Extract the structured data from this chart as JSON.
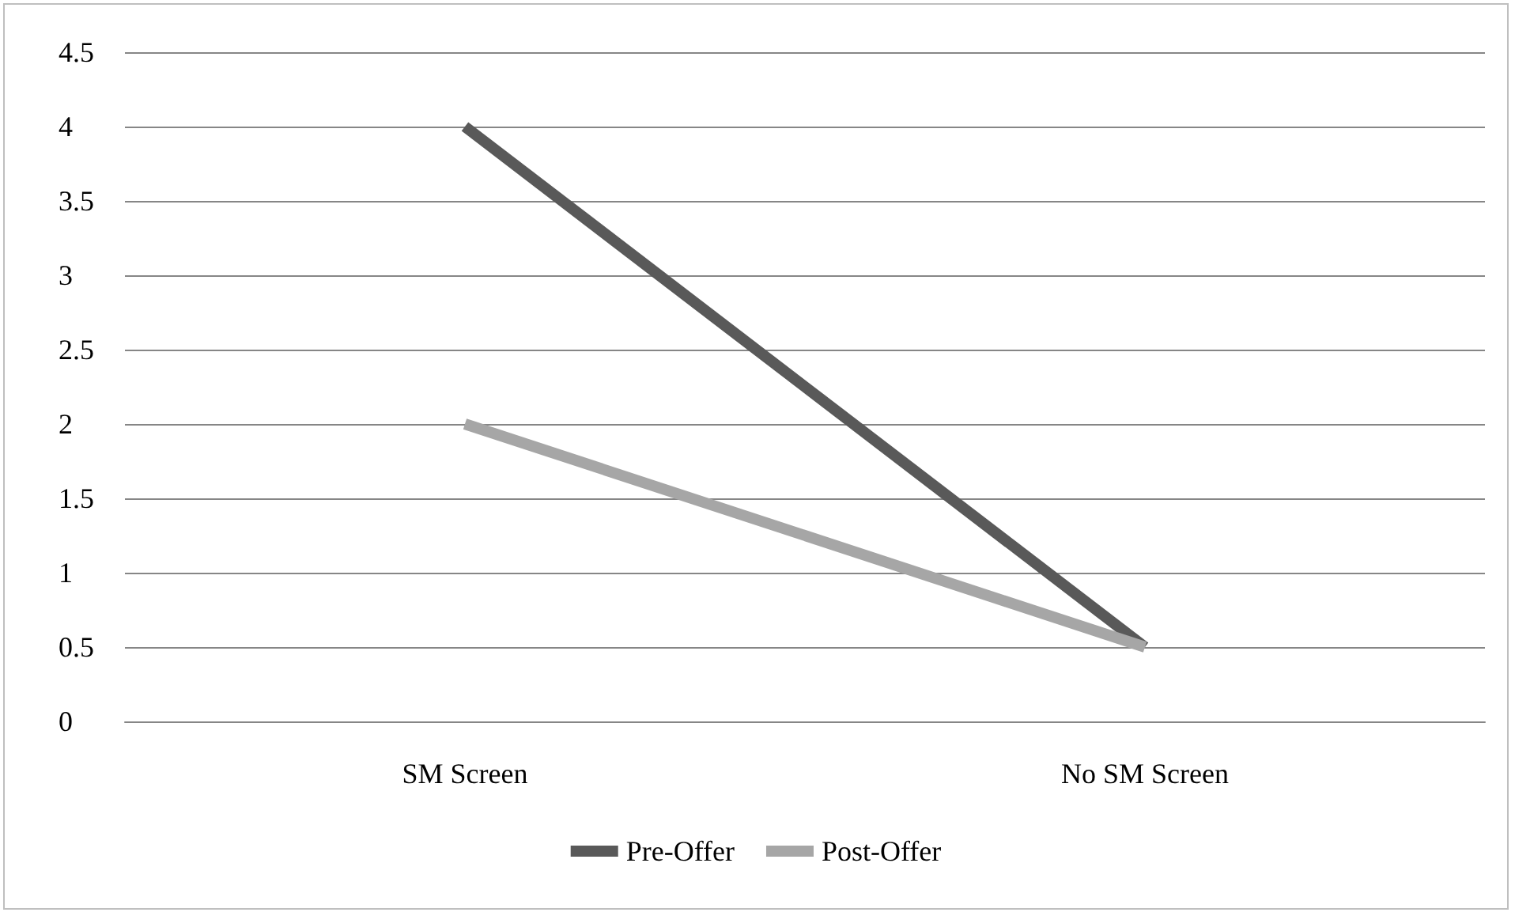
{
  "chart_data": {
    "type": "line",
    "categories": [
      "SM Screen",
      "No SM Screen"
    ],
    "series": [
      {
        "name": "Pre-Offer",
        "color": "#595959",
        "values": [
          4,
          0.5
        ]
      },
      {
        "name": "Post-Offer",
        "color": "#a6a6a6",
        "values": [
          2,
          0.5
        ]
      }
    ],
    "ylim": [
      0,
      4.5
    ],
    "yticks": [
      0,
      0.5,
      1,
      1.5,
      2,
      2.5,
      3,
      3.5,
      4,
      4.5
    ],
    "grid": "y",
    "legend": "bottom",
    "marker": "none",
    "line_style": "solid"
  }
}
